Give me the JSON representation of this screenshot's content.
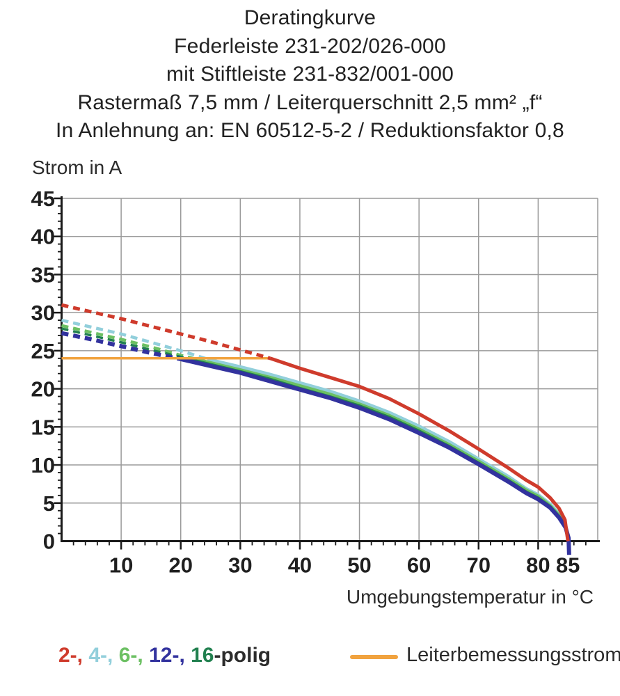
{
  "title": {
    "lines": [
      "Deratingkurve",
      "Federleiste 231-202/026-000",
      "mit Stiftleiste 231-832/001-000",
      "Rastermaß 7,5 mm / Leiterquerschnitt 2,5 mm² „f“",
      "In Anlehnung an: EN 60512-5-2 / Reduktionsfaktor 0,8"
    ]
  },
  "legend": {
    "polig_tokens": [
      {
        "text": "2-, ",
        "color": "#cf3b2c"
      },
      {
        "text": "4-, ",
        "color": "#92cfdb"
      },
      {
        "text": "6-, ",
        "color": "#6cc063"
      },
      {
        "text": "12-, ",
        "color": "#32329e"
      },
      {
        "text": "16",
        "color": "#21804f"
      },
      {
        "text": "-polig",
        "color": "#2b2b2b"
      }
    ],
    "rating_line_label": "Leiterbemessungsstrom",
    "rating_line_color": "#f1a33f"
  },
  "chart_data": {
    "type": "line",
    "title": "Deratingkurve",
    "xlabel": "Umgebungstemperatur in °C",
    "ylabel": "Strom in A",
    "xlim": [
      0,
      90
    ],
    "ylim": [
      0,
      45
    ],
    "grid": true,
    "colors": {
      "grid": "#9a9a9a",
      "axis": "#1a1a1a",
      "tick_text": "#1f1f1f"
    },
    "x_gridlines": [
      10,
      20,
      30,
      40,
      50,
      60,
      70,
      80,
      90
    ],
    "y_gridlines": [
      5,
      10,
      15,
      20,
      25,
      30,
      35,
      40,
      45
    ],
    "x_major_ticks": [
      10,
      20,
      30,
      40,
      50,
      60,
      70,
      80,
      85
    ],
    "x_tick_labels": [
      "10",
      "20",
      "30",
      "40",
      "50",
      "60",
      "70",
      "80",
      "85"
    ],
    "x_minor_step": 2,
    "y_major_ticks": [
      5,
      10,
      15,
      20,
      25,
      30,
      35,
      40,
      45
    ],
    "y_tick_labels_values": [
      0,
      5,
      10,
      15,
      20,
      25,
      30,
      35,
      40,
      45
    ],
    "y_tick_labels": [
      "0",
      "5",
      "10",
      "15",
      "20",
      "25",
      "30",
      "35",
      "40",
      "45"
    ],
    "y_minor_step": 1,
    "series": [
      {
        "name": "4-polig",
        "color": "#92cfdb",
        "width": 4.5,
        "dashed_points": [
          [
            0,
            29
          ],
          [
            5,
            28.1
          ],
          [
            10,
            27.2
          ],
          [
            15,
            26.1
          ],
          [
            20,
            25
          ],
          [
            24.5,
            23.9
          ]
        ],
        "solid_points": [
          [
            24.5,
            23.9
          ],
          [
            30,
            22.9
          ],
          [
            35,
            21.9
          ],
          [
            40,
            20.8
          ],
          [
            45,
            19.7
          ],
          [
            50,
            18.4
          ],
          [
            55,
            16.9
          ],
          [
            60,
            15.1
          ],
          [
            65,
            13.1
          ],
          [
            70,
            10.8
          ],
          [
            75,
            8.5
          ],
          [
            78,
            6.9
          ],
          [
            80,
            6.1
          ],
          [
            82,
            4.9
          ],
          [
            83.5,
            3.6
          ],
          [
            84.6,
            2.1
          ],
          [
            85.2,
            0
          ]
        ]
      },
      {
        "name": "6-polig",
        "color": "#6cc063",
        "width": 4.5,
        "dashed_points": [
          [
            0,
            28.3
          ],
          [
            5,
            27.4
          ],
          [
            10,
            26.5
          ],
          [
            15,
            25.5
          ],
          [
            20,
            24.4
          ],
          [
            22.5,
            23.9
          ]
        ],
        "solid_points": [
          [
            22.5,
            23.9
          ],
          [
            30,
            22.5
          ],
          [
            35,
            21.5
          ],
          [
            40,
            20.4
          ],
          [
            45,
            19.3
          ],
          [
            50,
            18
          ],
          [
            55,
            16.5
          ],
          [
            60,
            14.7
          ],
          [
            65,
            12.7
          ],
          [
            70,
            10.5
          ],
          [
            75,
            8.2
          ],
          [
            78,
            6.7
          ],
          [
            80,
            5.9
          ],
          [
            82,
            4.7
          ],
          [
            83.5,
            3.4
          ],
          [
            84.6,
            2
          ],
          [
            85.2,
            0
          ]
        ]
      },
      {
        "name": "16-polig",
        "color": "#21804f",
        "width": 3.5,
        "dashed_points": [
          [
            0,
            27.9
          ],
          [
            5,
            27
          ],
          [
            10,
            26.1
          ],
          [
            15,
            25.1
          ],
          [
            20,
            24.2
          ],
          [
            21.5,
            23.9
          ]
        ],
        "solid_points": [
          [
            21.5,
            23.9
          ],
          [
            30,
            22.3
          ],
          [
            35,
            21.3
          ],
          [
            40,
            20.1
          ],
          [
            45,
            19
          ],
          [
            50,
            17.8
          ],
          [
            55,
            16.3
          ],
          [
            60,
            14.5
          ],
          [
            65,
            12.5
          ],
          [
            70,
            10.3
          ],
          [
            75,
            8
          ],
          [
            78,
            6.5
          ],
          [
            80,
            5.7
          ],
          [
            82,
            4.6
          ],
          [
            83.5,
            3.3
          ],
          [
            84.6,
            1.9
          ],
          [
            85.2,
            0
          ]
        ]
      },
      {
        "name": "12-polig",
        "color": "#32329e",
        "width": 6,
        "dashed_points": [
          [
            0,
            27.3
          ],
          [
            5,
            26.5
          ],
          [
            10,
            25.6
          ],
          [
            15,
            24.7
          ],
          [
            20,
            23.9
          ]
        ],
        "solid_points": [
          [
            20,
            23.9
          ],
          [
            25,
            23
          ],
          [
            30,
            22.1
          ],
          [
            35,
            21
          ],
          [
            40,
            19.9
          ],
          [
            45,
            18.8
          ],
          [
            50,
            17.5
          ],
          [
            55,
            16
          ],
          [
            60,
            14.2
          ],
          [
            65,
            12.3
          ],
          [
            70,
            10.1
          ],
          [
            75,
            7.8
          ],
          [
            78,
            6.3
          ],
          [
            80,
            5.5
          ],
          [
            82,
            4.4
          ],
          [
            83.5,
            3.1
          ],
          [
            84.6,
            1.8
          ],
          [
            85.1,
            0.4
          ],
          [
            85.2,
            -1.8
          ]
        ]
      },
      {
        "name": "Leiterbemessungsstrom",
        "color": "#f1a33f",
        "width": 3.5,
        "solid_points": [
          [
            0,
            24
          ],
          [
            35,
            24
          ]
        ]
      },
      {
        "name": "2-polig",
        "color": "#cf3b2c",
        "width": 5,
        "dashed_points": [
          [
            0,
            31
          ],
          [
            5,
            30.1
          ],
          [
            10,
            29.2
          ],
          [
            15,
            28.2
          ],
          [
            20,
            27.2
          ],
          [
            25,
            26.2
          ],
          [
            30,
            25.1
          ],
          [
            35,
            24
          ]
        ],
        "solid_points": [
          [
            35,
            24
          ],
          [
            40,
            22.7
          ],
          [
            45,
            21.5
          ],
          [
            50,
            20.3
          ],
          [
            55,
            18.7
          ],
          [
            60,
            16.7
          ],
          [
            65,
            14.5
          ],
          [
            70,
            12.1
          ],
          [
            75,
            9.6
          ],
          [
            78,
            8
          ],
          [
            80,
            7.1
          ],
          [
            82,
            5.7
          ],
          [
            83.5,
            4.3
          ],
          [
            84.5,
            2.8
          ],
          [
            85,
            0
          ]
        ]
      }
    ],
    "annotations": {
      "rated_current_A": 24,
      "max_temperature_C": 85
    }
  }
}
